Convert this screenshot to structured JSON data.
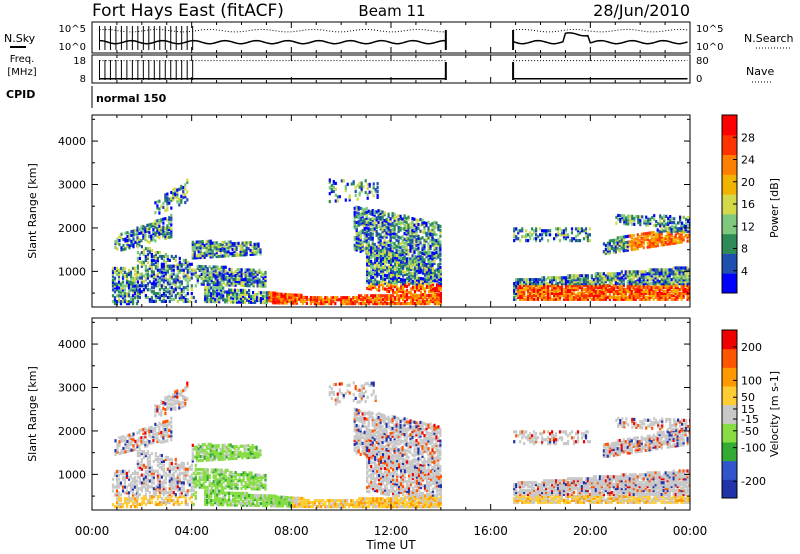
{
  "header": {
    "title": "Fort Hays East (fitACF)",
    "beam": "Beam 11",
    "date": "28/Jun/2010"
  },
  "status_panels": {
    "nsky_label": "N.Sky",
    "nsearch_label": "N.Search",
    "freq_label_line1": "Freq.",
    "freq_label_line2": "[MHz]",
    "nave_label": "Nave",
    "cpid_label": "CPID",
    "cpid_value": "normal 150",
    "noise_ticks": [
      "10^5",
      "10^0"
    ],
    "freq_ticks": [
      "18",
      "8"
    ],
    "nave_ticks": [
      "80",
      "0"
    ]
  },
  "chart_data": [
    {
      "type": "heatmap",
      "name": "power-panel",
      "ylabel": "Slant Range [km]",
      "ylim": [
        180,
        4600
      ],
      "yticks": [
        1000,
        2000,
        3000,
        4000
      ],
      "colorbar": {
        "label": "Power [dB]",
        "ticks": [
          4,
          8,
          12,
          16,
          20,
          24,
          28
        ],
        "range": [
          0,
          32
        ],
        "colors": [
          "#0000ff",
          "#1f4faf",
          "#2e8b57",
          "#7fc97f",
          "#d4d94a",
          "#f2b300",
          "#ff7f00",
          "#ff3300",
          "#ff0000"
        ]
      }
    },
    {
      "type": "heatmap",
      "name": "velocity-panel",
      "ylabel": "Slant Range [km]",
      "ylim": [
        180,
        4600
      ],
      "yticks": [
        1000,
        2000,
        3000,
        4000
      ],
      "colorbar": {
        "label": "Velocity [m s-1]",
        "ticks": [
          200,
          100,
          50,
          15,
          -15,
          -50,
          -100,
          -200
        ],
        "range": [
          -250,
          250
        ],
        "colors": [
          "#2233aa",
          "#3355cc",
          "#33aa33",
          "#88dd44",
          "#c8c8c8",
          "#ffcc33",
          "#ff9900",
          "#ff5500",
          "#ee0000"
        ]
      }
    }
  ],
  "time_axis": {
    "label": "Time UT",
    "ticks": [
      "00:00",
      "04:00",
      "08:00",
      "12:00",
      "16:00",
      "20:00",
      "00:00"
    ],
    "range_hours": [
      0,
      24
    ]
  },
  "data_gap_hours": [
    14.2,
    16.9
  ]
}
